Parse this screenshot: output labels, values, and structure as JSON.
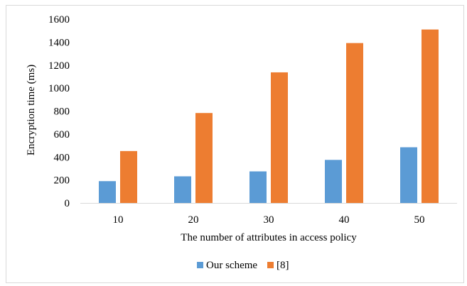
{
  "chart_data": {
    "type": "bar",
    "categories": [
      "10",
      "20",
      "30",
      "40",
      "50"
    ],
    "series": [
      {
        "name": "Our scheme",
        "color": "#5b9bd5",
        "values": [
          190,
          232,
          275,
          375,
          485
        ]
      },
      {
        "name": "[8]",
        "color": "#ed7d31",
        "values": [
          452,
          783,
          1137,
          1392,
          1510
        ]
      }
    ],
    "xlabel": "The number of attributes in access policy",
    "ylabel": "Encryption time  (ms)",
    "ylim": [
      0,
      1600
    ],
    "yticks": [
      "0",
      "200",
      "400",
      "600",
      "800",
      "1000",
      "1200",
      "1400",
      "1600"
    ],
    "grid": false,
    "legend_position": "bottom"
  }
}
